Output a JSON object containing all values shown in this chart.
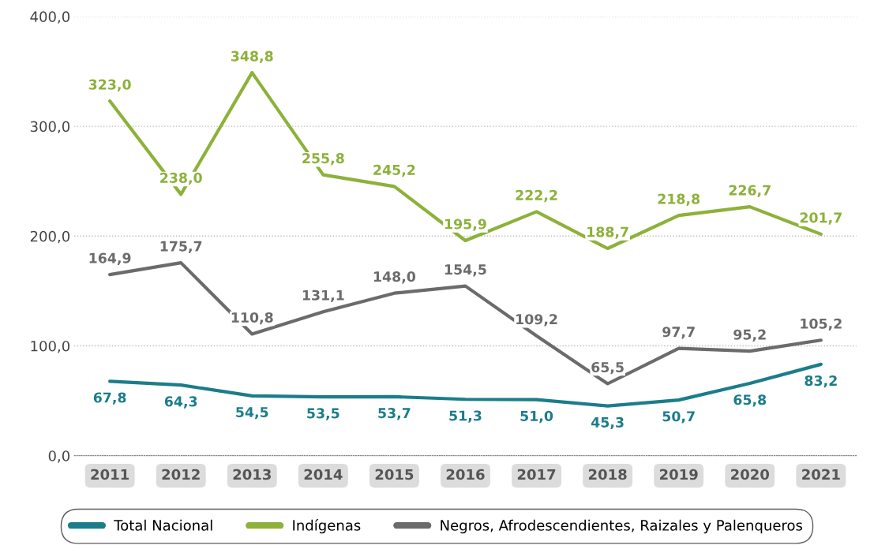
{
  "chart_data": {
    "type": "line",
    "categories": [
      "2011",
      "2012",
      "2013",
      "2014",
      "2015",
      "2016",
      "2017",
      "2018",
      "2019",
      "2020",
      "2021"
    ],
    "series": [
      {
        "name": "Total Nacional",
        "color": "#1b7d8a",
        "values": [
          67.8,
          64.3,
          54.5,
          53.5,
          53.7,
          51.3,
          51.0,
          45.3,
          50.7,
          65.8,
          83.2
        ],
        "value_labels": [
          "67,8",
          "64,3",
          "54,5",
          "53,5",
          "53,7",
          "51,3",
          "51,0",
          "45,3",
          "50,7",
          "65,8",
          "83,2"
        ]
      },
      {
        "name": "Indígenas",
        "color": "#8db13a",
        "values": [
          323.0,
          238.0,
          348.8,
          255.8,
          245.2,
          195.9,
          222.2,
          188.7,
          218.8,
          226.7,
          201.7
        ],
        "value_labels": [
          "323,0",
          "238,0",
          "348,8",
          "255,8",
          "245,2",
          "195,9",
          "222,2",
          "188,7",
          "218,8",
          "226,7",
          "201,7"
        ]
      },
      {
        "name": "Negros, Afrodescendientes, Raizales y Palenqueros",
        "color": "#6b6b6b",
        "values": [
          164.9,
          175.7,
          110.8,
          131.1,
          148.0,
          154.5,
          109.2,
          65.5,
          97.7,
          95.2,
          105.2
        ],
        "value_labels": [
          "164,9",
          "175,7",
          "110,8",
          "131,1",
          "148,0",
          "154,5",
          "109,2",
          "65,5",
          "97,7",
          "95,2",
          "105,2"
        ]
      }
    ],
    "ylim": [
      0,
      400
    ],
    "yticks": [
      {
        "value": 0,
        "label": "0,0"
      },
      {
        "value": 100,
        "label": "100,0"
      },
      {
        "value": 200,
        "label": "200,0"
      },
      {
        "value": 300,
        "label": "300,0"
      },
      {
        "value": 400,
        "label": "400,0"
      }
    ],
    "grid": "y",
    "legend": "bottom",
    "marker": "none",
    "line_style": "solid"
  }
}
